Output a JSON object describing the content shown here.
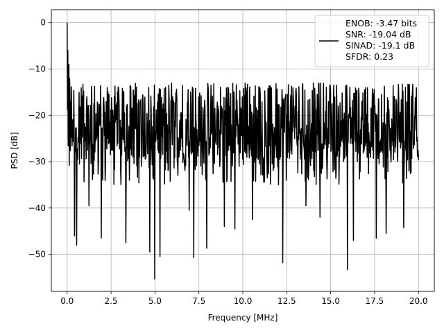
{
  "chart_data": {
    "type": "line",
    "title": "",
    "xlabel": "Frequency [MHz]",
    "ylabel": "PSD [dB]",
    "xlim": [
      -0.9,
      20.9
    ],
    "ylim": [
      -58,
      2.8
    ],
    "xticks": [
      0.0,
      2.5,
      5.0,
      7.5,
      10.0,
      12.5,
      15.0,
      17.5,
      20.0
    ],
    "xtick_labels": [
      "0.0",
      "2.5",
      "5.0",
      "7.5",
      "10.0",
      "12.5",
      "15.0",
      "17.5",
      "20.0"
    ],
    "yticks": [
      0,
      -10,
      -20,
      -30,
      -40,
      -50
    ],
    "ytick_labels": [
      "0",
      "−10",
      "−20",
      "−30",
      "−40",
      "−50"
    ],
    "grid": true,
    "legend": {
      "placement": "upper right",
      "entries": [
        "ENOB: -3.47 bits",
        "SNR: -19.04 dB",
        "SINAD: -19.1 dB",
        "SFDR: 0.23"
      ]
    },
    "series": [
      {
        "color": "#000000",
        "x_range": [
          0.0,
          20.0
        ],
        "noise_floor": {
          "upper_envelope": -13,
          "mean": -21,
          "lower_typical": -31
        },
        "peaks": [
          {
            "x": 0.0,
            "y": 0.0
          },
          {
            "x": 0.05,
            "y": -6.0
          },
          {
            "x": 0.1,
            "y": -9.0
          },
          {
            "x": 0.15,
            "y": -12.0
          }
        ],
        "deep_notches": [
          {
            "x": 0.42,
            "y": -46.0
          },
          {
            "x": 0.55,
            "y": -48.0
          },
          {
            "x": 1.25,
            "y": -39.5
          },
          {
            "x": 1.95,
            "y": -46.5
          },
          {
            "x": 3.35,
            "y": -47.5
          },
          {
            "x": 4.7,
            "y": -49.5
          },
          {
            "x": 4.98,
            "y": -55.3
          },
          {
            "x": 5.28,
            "y": -50.5
          },
          {
            "x": 6.95,
            "y": -40.5
          },
          {
            "x": 7.2,
            "y": -50.7
          },
          {
            "x": 7.95,
            "y": -48.7
          },
          {
            "x": 8.95,
            "y": -44.0
          },
          {
            "x": 9.55,
            "y": -44.5
          },
          {
            "x": 10.55,
            "y": -42.5
          },
          {
            "x": 12.28,
            "y": -51.8
          },
          {
            "x": 13.6,
            "y": -39.5
          },
          {
            "x": 14.4,
            "y": -42.0
          },
          {
            "x": 15.95,
            "y": -53.3
          },
          {
            "x": 16.3,
            "y": -47.0
          },
          {
            "x": 17.6,
            "y": -46.5
          },
          {
            "x": 18.15,
            "y": -45.5
          },
          {
            "x": 19.15,
            "y": -44.3
          }
        ]
      }
    ]
  }
}
